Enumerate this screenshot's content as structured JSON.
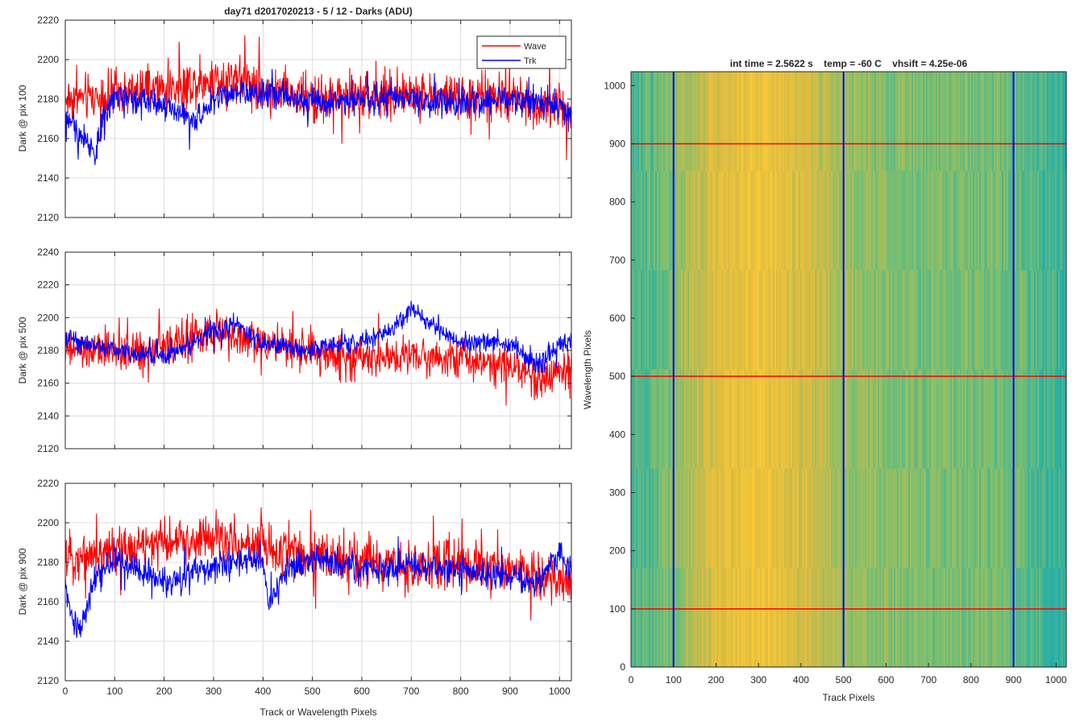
{
  "chart_data": [
    {
      "type": "line",
      "title": "day71 d2017020213 - 5 / 12 - Darks (ADU)",
      "xlabel": "",
      "ylabel": "Dark @ pix 100",
      "xlim": [
        0,
        1024
      ],
      "ylim": [
        2120,
        2220
      ],
      "xticks": [
        0,
        100,
        200,
        300,
        400,
        500,
        600,
        700,
        800,
        900,
        1000
      ],
      "xtick_labels_visible": false,
      "yticks": [
        2120,
        2140,
        2160,
        2180,
        2200,
        2220
      ],
      "grid": true,
      "legend": {
        "position": "top-right",
        "entries": [
          "Wave",
          "Trk"
        ]
      },
      "series": [
        {
          "name": "Wave",
          "color": "#ff0000",
          "x_range": [
            0,
            1024
          ],
          "points": 1024,
          "profile_x": [
            0,
            100,
            200,
            300,
            350,
            400,
            500,
            600,
            700,
            800,
            900,
            1000,
            1024
          ],
          "profile_y": [
            2180,
            2182,
            2185,
            2190,
            2192,
            2185,
            2180,
            2182,
            2182,
            2181,
            2180,
            2176,
            2174
          ],
          "noise": 10
        },
        {
          "name": "Trk",
          "color": "#0000ff",
          "x_range": [
            0,
            1024
          ],
          "points": 1024,
          "profile_x": [
            0,
            20,
            40,
            60,
            80,
            100,
            200,
            260,
            300,
            400,
            500,
            600,
            700,
            800,
            900,
            1000,
            1024
          ],
          "profile_y": [
            2172,
            2164,
            2160,
            2152,
            2172,
            2182,
            2178,
            2168,
            2180,
            2184,
            2178,
            2180,
            2180,
            2178,
            2180,
            2178,
            2170
          ],
          "noise": 6
        }
      ]
    },
    {
      "type": "line",
      "title": "",
      "xlabel": "",
      "ylabel": "Dark @ pix 500",
      "xlim": [
        0,
        1024
      ],
      "ylim": [
        2120,
        2240
      ],
      "xticks": [
        0,
        100,
        200,
        300,
        400,
        500,
        600,
        700,
        800,
        900,
        1000
      ],
      "xtick_labels_visible": false,
      "yticks": [
        2120,
        2140,
        2160,
        2180,
        2200,
        2220,
        2240
      ],
      "grid": true,
      "series": [
        {
          "name": "Wave",
          "color": "#ff0000",
          "x_range": [
            0,
            1024
          ],
          "points": 1024,
          "profile_x": [
            0,
            100,
            200,
            300,
            400,
            500,
            600,
            700,
            800,
            900,
            960,
            1024
          ],
          "profile_y": [
            2180,
            2178,
            2182,
            2190,
            2185,
            2178,
            2176,
            2178,
            2175,
            2172,
            2162,
            2170
          ],
          "noise": 10
        },
        {
          "name": "Trk",
          "color": "#0000ff",
          "x_range": [
            0,
            1024
          ],
          "points": 1024,
          "profile_x": [
            0,
            100,
            200,
            300,
            350,
            400,
            500,
            600,
            650,
            700,
            720,
            800,
            900,
            960,
            1000,
            1024
          ],
          "profile_y": [
            2188,
            2180,
            2176,
            2192,
            2196,
            2184,
            2180,
            2186,
            2190,
            2206,
            2200,
            2185,
            2184,
            2170,
            2186,
            2184
          ],
          "noise": 5
        }
      ]
    },
    {
      "type": "line",
      "title": "",
      "xlabel": "Track or Wavelength Pixels",
      "ylabel": "Dark @ pix 900",
      "xlim": [
        0,
        1024
      ],
      "ylim": [
        2120,
        2220
      ],
      "xticks": [
        0,
        100,
        200,
        300,
        400,
        500,
        600,
        700,
        800,
        900,
        1000
      ],
      "xtick_labels_visible": true,
      "yticks": [
        2120,
        2140,
        2160,
        2180,
        2200,
        2220
      ],
      "grid": true,
      "series": [
        {
          "name": "Wave",
          "color": "#ff0000",
          "x_range": [
            0,
            1024
          ],
          "points": 1024,
          "profile_x": [
            0,
            100,
            200,
            300,
            400,
            500,
            600,
            700,
            800,
            900,
            1000,
            1024
          ],
          "profile_y": [
            2182,
            2186,
            2190,
            2192,
            2188,
            2184,
            2180,
            2178,
            2180,
            2176,
            2170,
            2168
          ],
          "noise": 10
        },
        {
          "name": "Trk",
          "color": "#0000ff",
          "x_range": [
            0,
            1024
          ],
          "points": 1024,
          "profile_x": [
            0,
            15,
            30,
            60,
            100,
            200,
            300,
            400,
            410,
            450,
            500,
            600,
            700,
            800,
            900,
            950,
            1000,
            1024
          ],
          "profile_y": [
            2168,
            2150,
            2145,
            2172,
            2182,
            2170,
            2178,
            2182,
            2158,
            2176,
            2182,
            2176,
            2178,
            2176,
            2174,
            2168,
            2184,
            2176
          ],
          "noise": 6
        }
      ]
    },
    {
      "type": "heatmap",
      "title": "int time = 2.5622 s    temp = -60 C    vhsift = 4.25e-06",
      "xlabel": "Track Pixels",
      "ylabel": "Wavelength Pixels",
      "xlim": [
        0,
        1024
      ],
      "ylim": [
        0,
        1024
      ],
      "xticks": [
        0,
        100,
        200,
        300,
        400,
        500,
        600,
        700,
        800,
        900,
        1000
      ],
      "yticks": [
        0,
        100,
        200,
        300,
        400,
        500,
        600,
        700,
        800,
        900,
        1000
      ],
      "colormap": "parula",
      "column_profile_x": [
        0,
        60,
        120,
        200,
        300,
        400,
        500,
        600,
        700,
        800,
        900,
        1000,
        1024
      ],
      "column_profile_v": [
        0.48,
        0.52,
        0.62,
        0.74,
        0.8,
        0.72,
        0.62,
        0.58,
        0.56,
        0.56,
        0.54,
        0.46,
        0.42
      ],
      "vertical_lines": {
        "values": [
          100,
          500,
          900
        ],
        "color": "#0000ff"
      },
      "horizontal_lines": {
        "values": [
          100,
          500,
          900
        ],
        "color": "#ff0000"
      }
    }
  ]
}
